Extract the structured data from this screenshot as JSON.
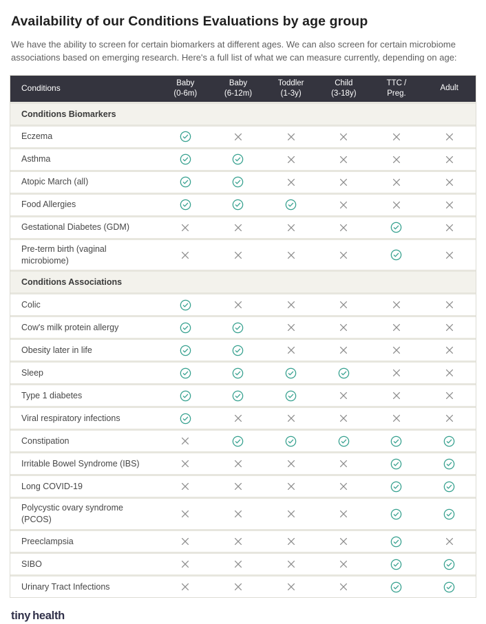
{
  "page": {
    "title": "Availability of our Conditions Evaluations by age group",
    "subtitle": "We have the ability to screen for certain biomarkers at different ages. We can also screen for certain microbiome associations based on emerging research. Here's a full list of what we can measure currently, depending on age:"
  },
  "table": {
    "conditions_header": "Conditions",
    "age_columns": [
      {
        "line1": "Baby",
        "line2": "(0-6m)"
      },
      {
        "line1": "Baby",
        "line2": "(6-12m)"
      },
      {
        "line1": "Toddler",
        "line2": "(1-3y)"
      },
      {
        "line1": "Child",
        "line2": "(3-18y)"
      },
      {
        "line1": "TTC /",
        "line2": "Preg."
      },
      {
        "line1": "Adult",
        "line2": ""
      }
    ],
    "icons": {
      "available": "check-circle-icon",
      "unavailable": "x-icon"
    },
    "sections": [
      {
        "title": "Conditions Biomarkers",
        "rows": [
          {
            "label": "Eczema",
            "availability": [
              true,
              false,
              false,
              false,
              false,
              false
            ]
          },
          {
            "label": "Asthma",
            "availability": [
              true,
              true,
              false,
              false,
              false,
              false
            ]
          },
          {
            "label": "Atopic March (all)",
            "availability": [
              true,
              true,
              false,
              false,
              false,
              false
            ]
          },
          {
            "label": "Food Allergies",
            "availability": [
              true,
              true,
              true,
              false,
              false,
              false
            ]
          },
          {
            "label": "Gestational Diabetes (GDM)",
            "availability": [
              false,
              false,
              false,
              false,
              true,
              false
            ]
          },
          {
            "label": "Pre-term birth (vaginal microbiome)",
            "availability": [
              false,
              false,
              false,
              false,
              true,
              false
            ]
          }
        ]
      },
      {
        "title": "Conditions Associations",
        "rows": [
          {
            "label": "Colic",
            "availability": [
              true,
              false,
              false,
              false,
              false,
              false
            ]
          },
          {
            "label": "Cow's milk protein allergy",
            "availability": [
              true,
              true,
              false,
              false,
              false,
              false
            ]
          },
          {
            "label": "Obesity later in life",
            "availability": [
              true,
              true,
              false,
              false,
              false,
              false
            ]
          },
          {
            "label": "Sleep",
            "availability": [
              true,
              true,
              true,
              true,
              false,
              false
            ]
          },
          {
            "label": "Type 1 diabetes",
            "availability": [
              true,
              true,
              true,
              false,
              false,
              false
            ]
          },
          {
            "label": "Viral respiratory infections",
            "availability": [
              true,
              false,
              false,
              false,
              false,
              false
            ]
          },
          {
            "label": "Constipation",
            "availability": [
              false,
              true,
              true,
              true,
              true,
              true
            ]
          },
          {
            "label": "Irritable Bowel Syndrome (IBS)",
            "availability": [
              false,
              false,
              false,
              false,
              true,
              true
            ]
          },
          {
            "label": "Long COVID-19",
            "availability": [
              false,
              false,
              false,
              false,
              true,
              true
            ]
          },
          {
            "label": "Polycystic ovary syndrome (PCOS)",
            "availability": [
              false,
              false,
              false,
              false,
              true,
              true
            ]
          },
          {
            "label": "Preeclampsia",
            "availability": [
              false,
              false,
              false,
              false,
              true,
              false
            ]
          },
          {
            "label": "SIBO",
            "availability": [
              false,
              false,
              false,
              false,
              true,
              true
            ]
          },
          {
            "label": "Urinary Tract Infections",
            "availability": [
              false,
              false,
              false,
              false,
              true,
              true
            ]
          }
        ]
      }
    ]
  },
  "footer": {
    "logo_part1": "tiny",
    "logo_part2": "health"
  },
  "colors": {
    "accent_teal": "#35a08e",
    "x_gray": "#8e8e8e",
    "table_header_bg": "#34343e",
    "section_bg": "#f3f2ec",
    "row_gap": "#e7e6de"
  }
}
